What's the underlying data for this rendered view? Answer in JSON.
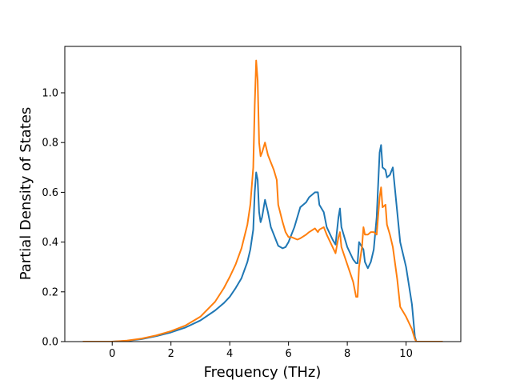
{
  "chart_data": {
    "type": "line",
    "xlabel": "Frequency (THz)",
    "ylabel": "Partial Density of States",
    "x": [
      -1,
      0,
      0.5,
      1,
      1.5,
      2,
      2.5,
      3,
      3.5,
      3.8,
      4,
      4.2,
      4.4,
      4.6,
      4.7,
      4.8,
      4.85,
      4.9,
      4.95,
      5.0,
      5.05,
      5.1,
      5.2,
      5.3,
      5.4,
      5.5,
      5.6,
      5.65,
      5.8,
      5.9,
      6.0,
      6.1,
      6.2,
      6.3,
      6.4,
      6.6,
      6.7,
      6.9,
      7.0,
      7.05,
      7.2,
      7.3,
      7.5,
      7.6,
      7.7,
      7.75,
      7.8,
      8.0,
      8.2,
      8.3,
      8.35,
      8.4,
      8.5,
      8.55,
      8.6,
      8.7,
      8.8,
      8.9,
      9.0,
      9.1,
      9.15,
      9.2,
      9.3,
      9.35,
      9.45,
      9.55,
      9.7,
      9.8,
      10.0,
      10.2,
      10.3,
      10.35,
      11.25
    ],
    "series": [
      {
        "color": "#1f77b4",
        "values": [
          0,
          0,
          0.003,
          0.01,
          0.022,
          0.037,
          0.057,
          0.085,
          0.125,
          0.155,
          0.18,
          0.215,
          0.255,
          0.32,
          0.37,
          0.45,
          0.6,
          0.68,
          0.65,
          0.52,
          0.48,
          0.5,
          0.57,
          0.52,
          0.46,
          0.43,
          0.4,
          0.385,
          0.375,
          0.38,
          0.4,
          0.43,
          0.46,
          0.5,
          0.54,
          0.56,
          0.58,
          0.6,
          0.6,
          0.55,
          0.52,
          0.46,
          0.41,
          0.39,
          0.5,
          0.535,
          0.46,
          0.38,
          0.33,
          0.315,
          0.315,
          0.4,
          0.38,
          0.37,
          0.32,
          0.295,
          0.32,
          0.37,
          0.5,
          0.76,
          0.79,
          0.7,
          0.69,
          0.66,
          0.67,
          0.7,
          0.52,
          0.4,
          0.3,
          0.15,
          0.02,
          0,
          0
        ]
      },
      {
        "color": "#ff7f0e",
        "values": [
          0,
          0,
          0.004,
          0.012,
          0.025,
          0.042,
          0.065,
          0.1,
          0.16,
          0.215,
          0.26,
          0.31,
          0.375,
          0.47,
          0.55,
          0.7,
          0.95,
          1.13,
          1.05,
          0.8,
          0.745,
          0.76,
          0.8,
          0.75,
          0.72,
          0.69,
          0.65,
          0.55,
          0.48,
          0.44,
          0.42,
          0.42,
          0.415,
          0.41,
          0.415,
          0.43,
          0.44,
          0.455,
          0.44,
          0.45,
          0.46,
          0.43,
          0.38,
          0.355,
          0.42,
          0.44,
          0.38,
          0.31,
          0.24,
          0.18,
          0.18,
          0.3,
          0.38,
          0.46,
          0.43,
          0.43,
          0.44,
          0.44,
          0.43,
          0.58,
          0.62,
          0.54,
          0.55,
          0.47,
          0.43,
          0.38,
          0.25,
          0.14,
          0.1,
          0.05,
          0.01,
          0,
          0
        ]
      }
    ],
    "xlim": [
      -1.6125,
      11.8625
    ],
    "xticks": [
      0,
      2,
      4,
      6,
      8,
      10
    ],
    "ylim": [
      0,
      1.1865
    ],
    "yticks": [
      {
        "value": 0,
        "label": "0.0"
      },
      0.2,
      0.4,
      0.6,
      0.8,
      {
        "value": 1,
        "label": "1.0"
      }
    ]
  }
}
